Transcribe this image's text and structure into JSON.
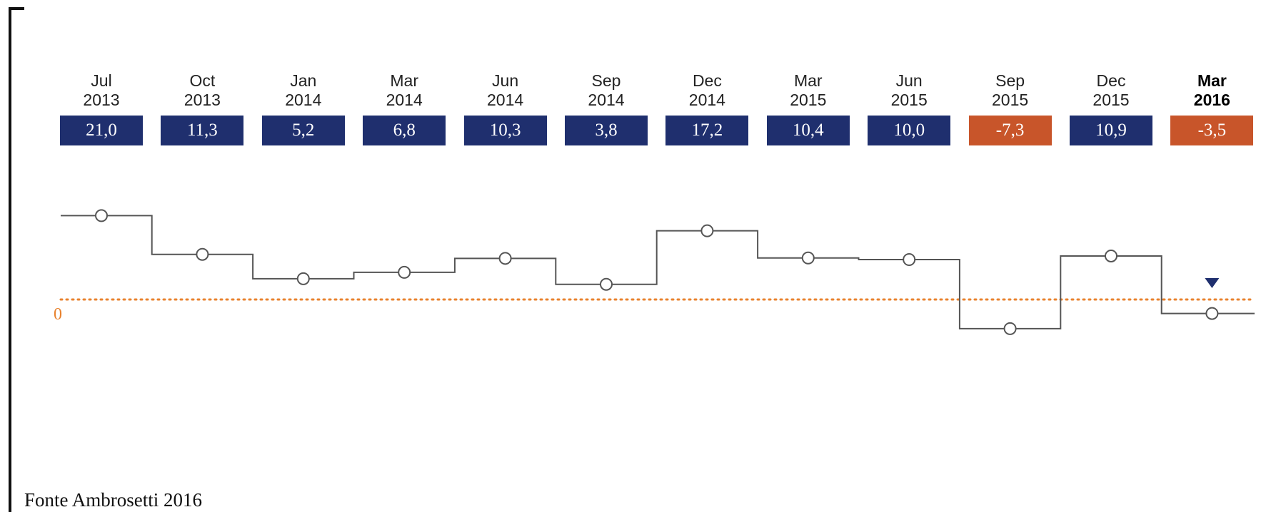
{
  "chart_data": {
    "type": "line",
    "step": true,
    "title": "",
    "xlabel": "",
    "ylabel": "",
    "zero_label": "0",
    "ylim": [
      -15,
      30
    ],
    "periods": [
      {
        "month": "Jul",
        "year": "2013",
        "value": 21.0,
        "label": "21,0"
      },
      {
        "month": "Oct",
        "year": "2013",
        "value": 11.3,
        "label": "11,3"
      },
      {
        "month": "Jan",
        "year": "2014",
        "value": 5.2,
        "label": "5,2"
      },
      {
        "month": "Mar",
        "year": "2014",
        "value": 6.8,
        "label": "6,8"
      },
      {
        "month": "Jun",
        "year": "2014",
        "value": 10.3,
        "label": "10,3"
      },
      {
        "month": "Sep",
        "year": "2014",
        "value": 3.8,
        "label": "3,8"
      },
      {
        "month": "Dec",
        "year": "2014",
        "value": 17.2,
        "label": "17,2"
      },
      {
        "month": "Mar",
        "year": "2015",
        "value": 10.4,
        "label": "10,4"
      },
      {
        "month": "Jun",
        "year": "2015",
        "value": 10.0,
        "label": "10,0"
      },
      {
        "month": "Sep",
        "year": "2015",
        "value": -7.3,
        "label": "-7,3"
      },
      {
        "month": "Dec",
        "year": "2015",
        "value": 10.9,
        "label": "10,9"
      },
      {
        "month": "Mar",
        "year": "2016",
        "value": -3.5,
        "label": "-3,5"
      }
    ],
    "highlighted_period_index": 11,
    "zero_line": true,
    "colors": {
      "positive": "#1f2f6e",
      "negative": "#c8552a",
      "line": "#555555",
      "zero_line": "#e8822e",
      "marker": "#1f2f6e"
    }
  },
  "source": "Fonte Ambrosetti 2016"
}
